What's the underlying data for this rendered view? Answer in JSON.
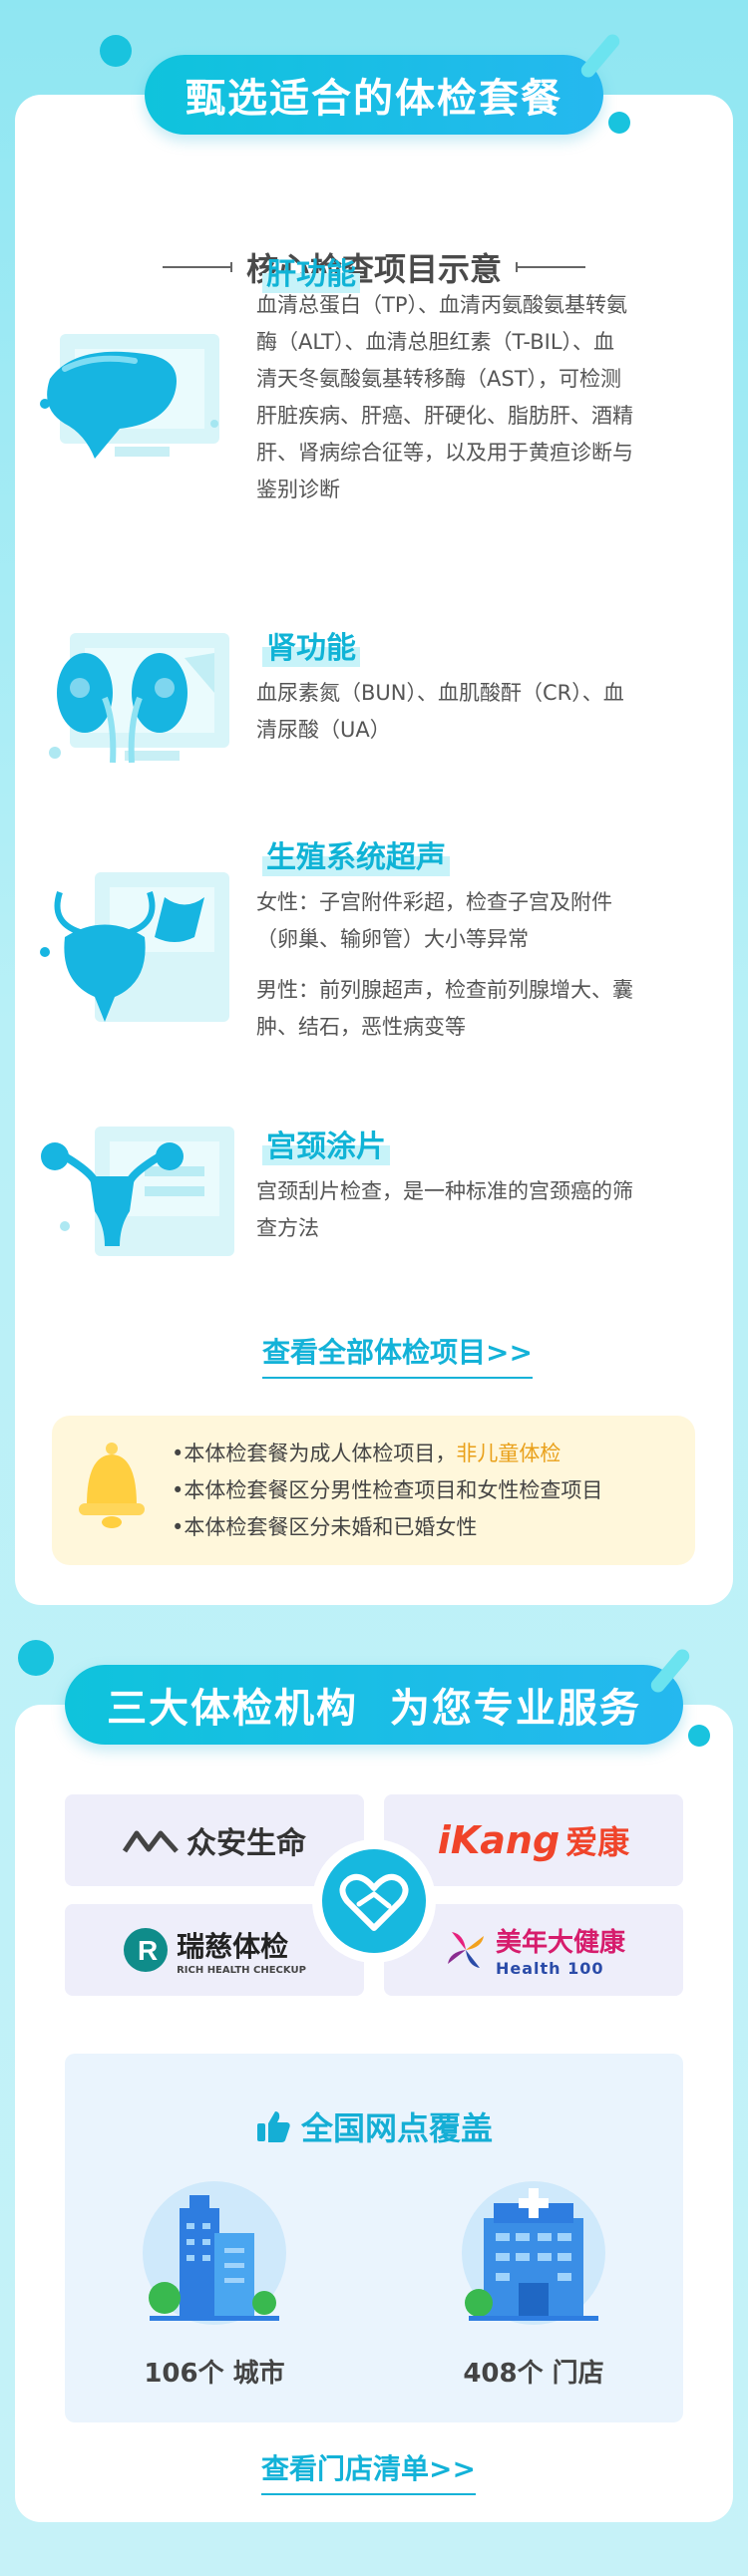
{
  "header": {
    "title": "甄选适合的体检套餐"
  },
  "section": {
    "subtitle": "核心检查项目示意"
  },
  "items": [
    {
      "title": "肝功能",
      "desc": [
        "血清总蛋白（TP）、血清丙氨酸氨基转氨",
        "酶（ALT）、血清总胆红素（T-BIL）、血",
        "清天冬氨酸氨基转移酶（AST），可检测",
        "肝脏疾病、肝癌、肝硬化、脂肪肝、酒精",
        "肝、肾病综合征等，以及用于黄疸诊断与",
        "鉴别诊断"
      ],
      "icon": "liver-icon"
    },
    {
      "title": "肾功能",
      "desc": [
        "血尿素氮（BUN）、血肌酸酐（CR）、血",
        "清尿酸（UA）"
      ],
      "icon": "kidney-icon"
    },
    {
      "title": "生殖系统超声",
      "desc": [
        "女性：子宫附件彩超，检查子宫及附件",
        "（卵巢、输卵管）大小等异常"
      ],
      "desc2": [
        "男性：前列腺超声，检查前列腺增大、囊",
        "肿、结石，恶性病变等"
      ],
      "icon": "bladder-ultrasound-icon"
    },
    {
      "title": "宫颈涂片",
      "desc": [
        "宫颈刮片检查，是一种标准的宫颈癌的筛",
        "查方法"
      ],
      "icon": "uterus-icon"
    }
  ],
  "links": {
    "all_items": "查看全部体检项目>>",
    "store_list": "查看门店清单>>"
  },
  "notice": {
    "line1_prefix": "•本体检套餐为成人体检项目，",
    "line1_highlight": "非儿童体检",
    "line2": "•本体检套餐区分男性检查项目和女性检查项目",
    "line3": "•本体检套餐区分未婚和已婚女性"
  },
  "institutions": {
    "title": "三大体检机构  为您专业服务",
    "logos": {
      "zhongan": "众安生命",
      "ikang_i": "i",
      "ikang_kang": "Kang",
      "ikang_cn": "爱康",
      "ruici": "瑞慈体检",
      "ruici_en": "RICH HEALTH CHECKUP",
      "meinian_cn": "美年大健康",
      "meinian_en": "Health 100"
    }
  },
  "coverage": {
    "title": "全国网点覆盖",
    "cities": "106个 城市",
    "stores": "408个 门店"
  },
  "colors": {
    "accent": "#10b3d6",
    "highlight": "#e9a01a",
    "notice_bg": "#fff7db"
  }
}
